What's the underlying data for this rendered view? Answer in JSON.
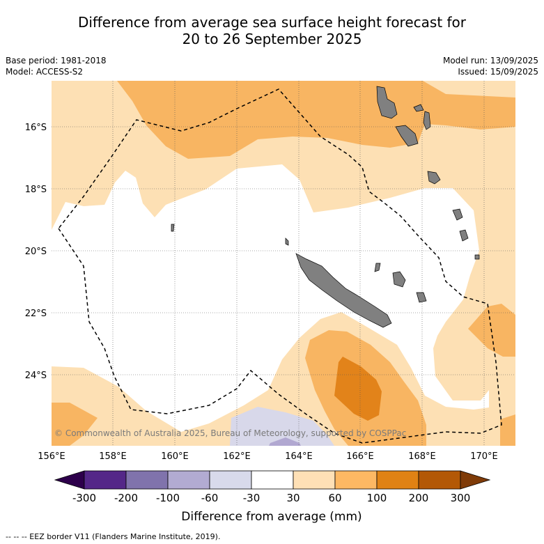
{
  "title": {
    "line1": "Difference from average sea surface height forecast for",
    "line2": "20 to 26 September 2025"
  },
  "meta": {
    "base_period": "Base period: 1981-2018",
    "model": "Model: ACCESS-S2",
    "model_run": "Model run: 13/09/2025",
    "issued": "Issued: 15/09/2025"
  },
  "map": {
    "lat_labels": [
      "16°S",
      "18°S",
      "20°S",
      "22°S",
      "24°S"
    ],
    "lon_labels": [
      "156°E",
      "158°E",
      "160°E",
      "162°E",
      "164°E",
      "166°E",
      "168°E",
      "170°E"
    ],
    "copyright": "© Commonwealth of Australia 2025, Bureau of Meteorology, supported by COSPPac",
    "colors": {
      "land": "#808080",
      "pos_30_60": "#fde0b4",
      "pos_60_100": "#f8b562",
      "pos_100_200": "#e2831a",
      "neg_30_60": "#d8d8ea",
      "neg_60_100": "#b1a8d1"
    }
  },
  "colorbar": {
    "ticks": [
      "-300",
      "-200",
      "-100",
      "-60",
      "-30",
      "30",
      "60",
      "100",
      "200",
      "300"
    ],
    "colors": [
      "#2d004b",
      "#542788",
      "#8073ac",
      "#b2abd2",
      "#d8daeb",
      "#ffffff",
      "#fee0b6",
      "#fdb863",
      "#e08214",
      "#b35806",
      "#7f3b08"
    ],
    "label": "Difference from average (mm)"
  },
  "footnote": "-- -- -- EEZ border V11 (Flanders Marine Institute, 2019)."
}
